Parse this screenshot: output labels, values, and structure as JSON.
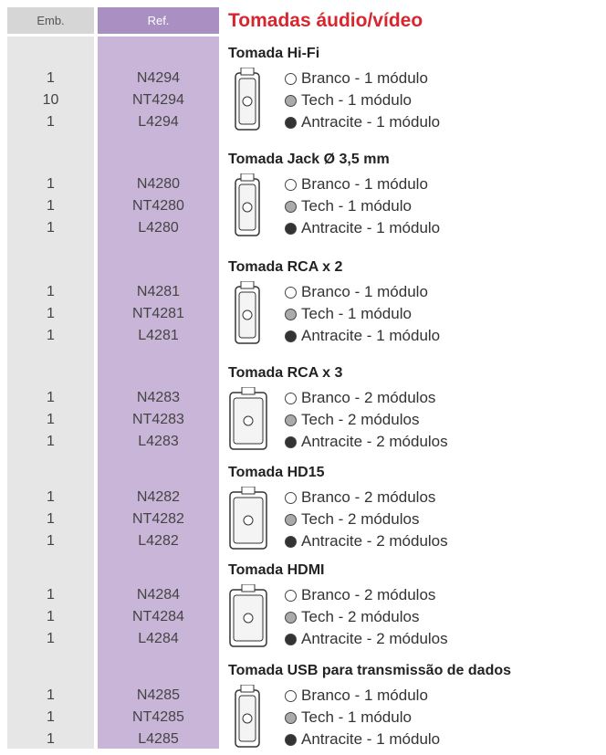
{
  "header": {
    "emb": "Emb.",
    "ref": "Ref.",
    "title": "Tomadas áudio/vídeo"
  },
  "sections": [
    {
      "name": "Tomada Hi-Fi",
      "items": [
        {
          "emb": 1,
          "ref": "N4294",
          "desc": "Branco - 1 módulo"
        },
        {
          "emb": 10,
          "ref": "NT4294",
          "desc": "Tech - 1 módulo"
        },
        {
          "emb": 1,
          "ref": "L4294",
          "desc": "Antracite - 1 módulo"
        }
      ]
    },
    {
      "name": "Tomada Jack Ø 3,5 mm",
      "items": [
        {
          "emb": 1,
          "ref": "N4280",
          "desc": "Branco - 1 módulo"
        },
        {
          "emb": 1,
          "ref": "NT4280",
          "desc": "Tech - 1 módulo"
        },
        {
          "emb": 1,
          "ref": "L4280",
          "desc": "Antracite - 1 módulo"
        }
      ]
    },
    {
      "name": "Tomada RCA x 2",
      "items": [
        {
          "emb": 1,
          "ref": "N4281",
          "desc": "Branco - 1 módulo"
        },
        {
          "emb": 1,
          "ref": "NT4281",
          "desc": "Tech - 1 módulo"
        },
        {
          "emb": 1,
          "ref": "L4281",
          "desc": "Antracite - 1 módulo"
        }
      ]
    },
    {
      "name": "Tomada RCA x 3",
      "items": [
        {
          "emb": 1,
          "ref": "N4283",
          "desc": "Branco - 2 módulos"
        },
        {
          "emb": 1,
          "ref": "NT4283",
          "desc": "Tech - 2 módulos"
        },
        {
          "emb": 1,
          "ref": "L4283",
          "desc": "Antracite - 2 módulos"
        }
      ]
    },
    {
      "name": "Tomada HD15",
      "items": [
        {
          "emb": 1,
          "ref": "N4282",
          "desc": "Branco - 2 módulos"
        },
        {
          "emb": 1,
          "ref": "NT4282",
          "desc": "Tech - 2 módulos"
        },
        {
          "emb": 1,
          "ref": "L4282",
          "desc": "Antracite - 2 módulos"
        }
      ]
    },
    {
      "name": "Tomada HDMI",
      "items": [
        {
          "emb": 1,
          "ref": "N4284",
          "desc": "Branco - 2 módulos"
        },
        {
          "emb": 1,
          "ref": "NT4284",
          "desc": "Tech - 2 módulos"
        },
        {
          "emb": 1,
          "ref": "L4284",
          "desc": "Antracite - 2 módulos"
        }
      ]
    },
    {
      "name": "Tomada USB para transmissão de dados",
      "items": [
        {
          "emb": 1,
          "ref": "N4285",
          "desc": "Branco - 1 módulo"
        },
        {
          "emb": 1,
          "ref": "NT4285",
          "desc": "Tech - 1 módulo"
        },
        {
          "emb": 1,
          "ref": "L4285",
          "desc": "Antracite - 1 módulo"
        }
      ]
    }
  ]
}
